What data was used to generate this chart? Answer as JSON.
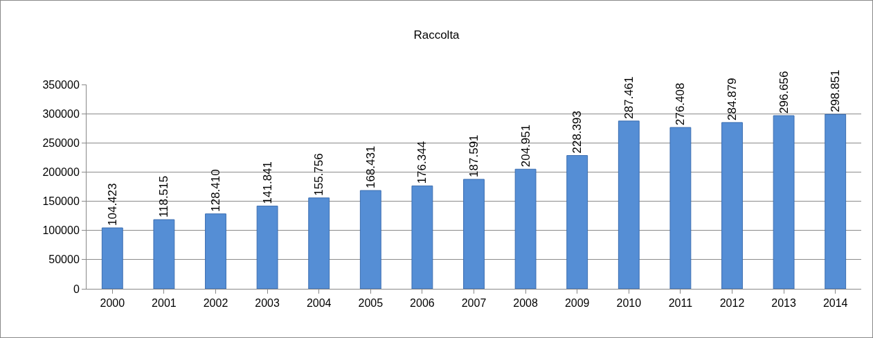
{
  "chart_data": {
    "type": "bar",
    "title": "Raccolta",
    "categories": [
      "2000",
      "2001",
      "2002",
      "2003",
      "2004",
      "2005",
      "2006",
      "2007",
      "2008",
      "2009",
      "2010",
      "2011",
      "2012",
      "2013",
      "2014"
    ],
    "values": [
      104423,
      118515,
      128410,
      141841,
      155756,
      168431,
      176344,
      187591,
      204951,
      228393,
      287461,
      276408,
      284879,
      296656,
      298851
    ],
    "value_labels": [
      "104.423",
      "118.515",
      "128.410",
      "141.841",
      "155.756",
      "168.431",
      "176.344",
      "187.591",
      "204.951",
      "228.393",
      "287.461",
      "276.408",
      "284.879",
      "296.656",
      "298.851"
    ],
    "color": "#558ed5",
    "ylim": [
      0,
      350000
    ],
    "yticks": [
      0,
      50000,
      100000,
      150000,
      200000,
      250000,
      300000,
      350000
    ],
    "grid": "y"
  }
}
